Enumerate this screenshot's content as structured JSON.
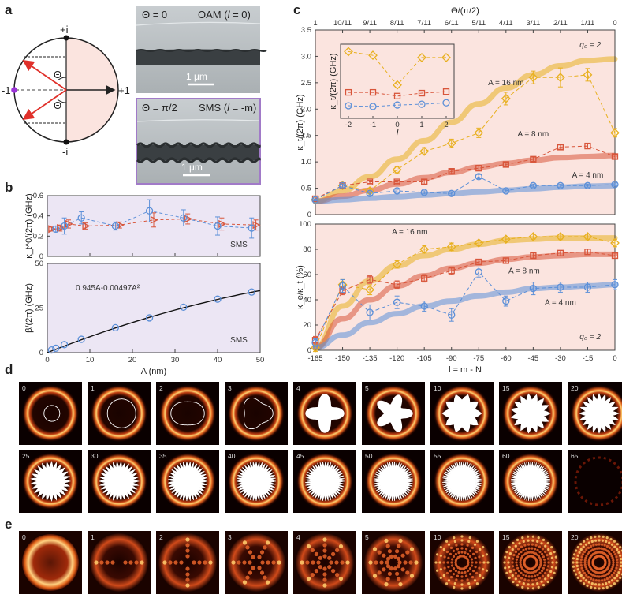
{
  "panel_labels": [
    "a",
    "b",
    "c",
    "d",
    "e"
  ],
  "colors": {
    "orange": "#e8b020",
    "red": "#d8553a",
    "blue": "#5b8fd8",
    "pink_bg": "#fbe4df",
    "lavender_bg": "#ece6f4",
    "purple_frame": "#a17ac8",
    "violet_dot": "#9b34d8",
    "arrow_red": "#e0302a"
  },
  "panel_a": {
    "sphere_labels": {
      "top": "+i",
      "bottom": "-i",
      "left": "-1",
      "right": "+1",
      "theta": "Θ"
    },
    "sem_top": {
      "caption1": "Θ = 0",
      "caption2": "OAM (",
      "caption_l": "l",
      "caption3": " = 0)",
      "scalebar": "1 μm"
    },
    "sem_bottom": {
      "caption1": "Θ = π/2",
      "caption2": "SMS (",
      "caption_l": "l",
      "caption3": " = -m)",
      "scalebar": "1 μm"
    }
  },
  "chart_data": [
    {
      "id": "b_top",
      "type": "scatter",
      "title": "",
      "ylabel": "κ_t^0/(2π) (GHz)",
      "ylim": [
        0,
        0.6
      ],
      "xlim": [
        0,
        50
      ],
      "yticks": [
        "0",
        "0.2",
        "0.4",
        "0.6"
      ],
      "annotation": "SMS",
      "series": [
        {
          "name": "blue",
          "x": [
            2,
            4,
            8,
            16,
            24,
            32,
            40,
            48
          ],
          "y": [
            0.27,
            0.3,
            0.38,
            0.3,
            0.45,
            0.38,
            0.3,
            0.28
          ],
          "err": [
            0.03,
            0.08,
            0.06,
            0.04,
            0.11,
            0.08,
            0.09,
            0.1
          ]
        },
        {
          "name": "red",
          "x": [
            1,
            3,
            5,
            9,
            17,
            25,
            33,
            41,
            49
          ],
          "y": [
            0.27,
            0.28,
            0.32,
            0.3,
            0.31,
            0.36,
            0.37,
            0.32,
            0.31
          ],
          "err": [
            0.02,
            0.03,
            0.04,
            0.03,
            0.03,
            0.07,
            0.05,
            0.06,
            0.05
          ]
        }
      ]
    },
    {
      "id": "b_bottom",
      "type": "scatter",
      "ylabel": "β/(2π) (GHz)",
      "xlabel": "A (nm)",
      "ylim": [
        0,
        50
      ],
      "xlim": [
        0,
        50
      ],
      "yticks": [
        "0",
        "25",
        "50"
      ],
      "xticks": [
        "0",
        "10",
        "20",
        "30",
        "40",
        "50"
      ],
      "fit_label": "0.945A-0.00497A²",
      "annotation": "SMS",
      "series": [
        {
          "name": "blue",
          "x": [
            1,
            2,
            4,
            8,
            16,
            24,
            32,
            40,
            48
          ],
          "y": [
            1.5,
            2.5,
            4.5,
            7.5,
            14,
            19.5,
            25.5,
            30,
            34
          ]
        }
      ]
    },
    {
      "id": "c_top",
      "type": "line",
      "ylabel": "κ_t/(2π) (GHz)",
      "top_axis_label": "Θ/(π/2)",
      "top_ticks": [
        "1",
        "10/11",
        "9/11",
        "8/11",
        "7/11",
        "6/11",
        "5/11",
        "4/11",
        "3/11",
        "2/11",
        "1/11",
        "0"
      ],
      "yticks": [
        "0",
        "0.5",
        "1.0",
        "1.5",
        "2.0",
        "2.5",
        "3.0",
        "3.5"
      ],
      "ylim": [
        0,
        3.5
      ],
      "xlim": [
        -165,
        0
      ],
      "q0": "q₀ = 2",
      "series": [
        {
          "name": "A = 16 nm",
          "x": [
            -165,
            -150,
            -135,
            -120,
            -105,
            -90,
            -75,
            -60,
            -45,
            -30,
            -15,
            0
          ],
          "y": [
            0.28,
            0.55,
            0.45,
            0.85,
            1.2,
            1.35,
            1.55,
            2.2,
            2.6,
            2.6,
            2.65,
            1.55
          ],
          "err": [
            0.05,
            0.05,
            0.05,
            0.06,
            0.07,
            0.08,
            0.09,
            0.12,
            0.12,
            0.18,
            0.12,
            0.08
          ]
        },
        {
          "name": "A = 8 nm",
          "x": [
            -165,
            -150,
            -135,
            -120,
            -105,
            -90,
            -75,
            -60,
            -45,
            -30,
            -15,
            0
          ],
          "y": [
            0.3,
            0.55,
            0.62,
            0.62,
            0.62,
            0.82,
            0.88,
            0.95,
            1.05,
            1.28,
            1.3,
            1.1
          ],
          "err": [
            0.03,
            0.03,
            0.03,
            0.03,
            0.04,
            0.04,
            0.04,
            0.04,
            0.04,
            0.04,
            0.04,
            0.04
          ]
        },
        {
          "name": "A = 4 nm",
          "x": [
            -165,
            -150,
            -135,
            -120,
            -105,
            -90,
            -75,
            -60,
            -45,
            -30,
            -15,
            0
          ],
          "y": [
            0.28,
            0.55,
            0.4,
            0.45,
            0.42,
            0.4,
            0.72,
            0.45,
            0.55,
            0.55,
            0.55,
            0.57
          ],
          "err": [
            0.02,
            0.03,
            0.03,
            0.03,
            0.03,
            0.03,
            0.04,
            0.03,
            0.03,
            0.03,
            0.03,
            0.03
          ]
        }
      ],
      "fits": [
        {
          "name": "A = 16 nm",
          "y": [
            0.25,
            0.45,
            0.72,
            1.05,
            1.4,
            1.75,
            2.1,
            2.4,
            2.65,
            2.82,
            2.92,
            2.95
          ]
        },
        {
          "name": "A = 8 nm",
          "y": [
            0.25,
            0.35,
            0.46,
            0.58,
            0.7,
            0.8,
            0.9,
            0.97,
            1.03,
            1.08,
            1.1,
            1.12
          ]
        },
        {
          "name": "A = 4 nm",
          "y": [
            0.25,
            0.28,
            0.31,
            0.34,
            0.37,
            0.4,
            0.43,
            0.46,
            0.49,
            0.52,
            0.54,
            0.55
          ]
        }
      ],
      "inset": {
        "ylabel": "κ_t/(2π) (GHz)",
        "xlabel": "l",
        "xticks": [
          "-2",
          "-1",
          "0",
          "1",
          "2"
        ],
        "series": [
          {
            "name": "orange",
            "x": [
              -2,
              -1,
              0,
              1,
              2
            ],
            "y": [
              0.9,
              0.85,
              0.45,
              0.82,
              0.82
            ]
          },
          {
            "name": "red",
            "x": [
              -2,
              -1,
              0,
              1,
              2
            ],
            "y": [
              0.35,
              0.35,
              0.3,
              0.34,
              0.36
            ]
          },
          {
            "name": "blue",
            "x": [
              -2,
              -1,
              0,
              1,
              2
            ],
            "y": [
              0.17,
              0.16,
              0.18,
              0.19,
              0.21
            ]
          }
        ]
      }
    },
    {
      "id": "c_bottom",
      "type": "line",
      "ylabel": "κ_e/κ_t (%)",
      "xlabel": "l = m - N",
      "xticks": [
        "-165",
        "-150",
        "-135",
        "-120",
        "-105",
        "-90",
        "-75",
        "-60",
        "-45",
        "-30",
        "-15",
        "0"
      ],
      "yticks": [
        "0",
        "20",
        "40",
        "60",
        "80",
        "100"
      ],
      "ylim": [
        0,
        100
      ],
      "xlim": [
        -165,
        0
      ],
      "q0": "q₀ = 2",
      "series": [
        {
          "name": "A = 16 nm",
          "x": [
            -165,
            -150,
            -135,
            -120,
            -105,
            -90,
            -75,
            -60,
            -45,
            -30,
            -15,
            0
          ],
          "y": [
            2,
            52,
            48,
            68,
            80,
            82,
            85,
            88,
            90,
            90,
            90,
            85
          ],
          "err": [
            3,
            4,
            4,
            3,
            3,
            3,
            2,
            2,
            2,
            2,
            2,
            3
          ]
        },
        {
          "name": "A = 8 nm",
          "x": [
            -165,
            -150,
            -135,
            -120,
            -105,
            -90,
            -75,
            -60,
            -45,
            -30,
            -15,
            0
          ],
          "y": [
            8,
            47,
            56,
            52,
            57,
            63,
            70,
            71,
            75,
            77,
            78,
            75
          ],
          "err": [
            3,
            3,
            3,
            3,
            3,
            3,
            2,
            2,
            2,
            2,
            2,
            2
          ]
        },
        {
          "name": "A = 4 nm",
          "x": [
            -165,
            -150,
            -135,
            -120,
            -105,
            -90,
            -75,
            -60,
            -45,
            -30,
            -15,
            0
          ],
          "y": [
            6,
            51,
            30,
            38,
            35,
            28,
            62,
            39,
            49,
            50,
            50,
            52
          ],
          "err": [
            3,
            5,
            6,
            5,
            4,
            5,
            4,
            4,
            5,
            4,
            4,
            4
          ]
        }
      ],
      "fits": [
        {
          "name": "A = 16 nm",
          "y": [
            2,
            35,
            55,
            67,
            75,
            80,
            84,
            87,
            88,
            89,
            89,
            89
          ]
        },
        {
          "name": "A = 8 nm",
          "y": [
            2,
            25,
            40,
            51,
            59,
            65,
            69,
            72,
            74,
            75,
            76,
            76
          ]
        },
        {
          "name": "A = 4 nm",
          "y": [
            2,
            12,
            22,
            29,
            35,
            39,
            43,
            46,
            49,
            50,
            51,
            52
          ]
        }
      ]
    }
  ],
  "panel_d": {
    "tiles": [
      "0",
      "1",
      "2",
      "3",
      "4",
      "5",
      "10",
      "15",
      "20",
      "25",
      "30",
      "35",
      "40",
      "45",
      "50",
      "55",
      "60",
      "65"
    ]
  },
  "panel_e": {
    "tiles": [
      "0",
      "1",
      "2",
      "3",
      "4",
      "5",
      "10",
      "15",
      "20"
    ]
  }
}
